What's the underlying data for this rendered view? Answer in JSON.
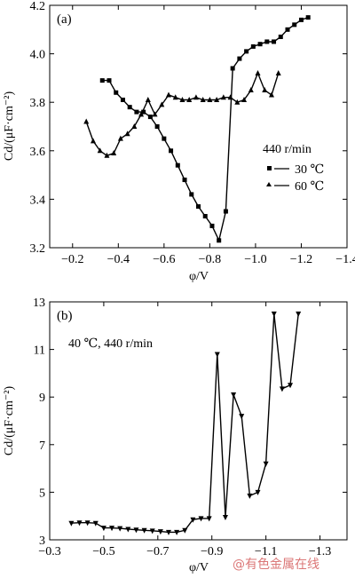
{
  "chart_data": [
    {
      "type": "line",
      "panel_label": "(a)",
      "xlabel": "φ/V",
      "ylabel": "Cd/(μF·cm⁻²)",
      "xlim": [
        -0.1,
        -1.4
      ],
      "ylim": [
        3.2,
        4.2
      ],
      "xticks": [
        -0.2,
        -0.4,
        -0.6,
        -0.8,
        -1.0,
        -1.2,
        -1.4
      ],
      "xtick_labels": [
        "−0.2",
        "−0.4",
        "−0.6",
        "−0.8",
        "−1.0",
        "−1.2",
        "−1.4"
      ],
      "yticks": [
        3.2,
        3.4,
        3.6,
        3.8,
        4.0,
        4.2
      ],
      "ytick_labels": [
        "3.2",
        "3.4",
        "3.6",
        "3.8",
        "4.0",
        "4.2"
      ],
      "legend_title": "440 r/min",
      "legend_position": "right",
      "series": [
        {
          "name": "30 ℃",
          "marker": "square",
          "x": [
            -0.33,
            -0.36,
            -0.39,
            -0.42,
            -0.45,
            -0.48,
            -0.51,
            -0.54,
            -0.57,
            -0.6,
            -0.63,
            -0.66,
            -0.69,
            -0.72,
            -0.75,
            -0.78,
            -0.81,
            -0.84,
            -0.87,
            -0.9,
            -0.93,
            -0.96,
            -0.99,
            -1.02,
            -1.05,
            -1.08,
            -1.11,
            -1.14,
            -1.17,
            -1.2,
            -1.23
          ],
          "y": [
            3.89,
            3.89,
            3.84,
            3.81,
            3.78,
            3.76,
            3.76,
            3.74,
            3.7,
            3.65,
            3.6,
            3.54,
            3.48,
            3.42,
            3.37,
            3.33,
            3.29,
            3.23,
            3.35,
            3.94,
            3.98,
            4.01,
            4.03,
            4.04,
            4.05,
            4.05,
            4.07,
            4.1,
            4.12,
            4.14,
            4.15
          ]
        },
        {
          "name": "60 ℃",
          "marker": "triangle",
          "x": [
            -0.26,
            -0.29,
            -0.32,
            -0.35,
            -0.38,
            -0.41,
            -0.44,
            -0.47,
            -0.5,
            -0.53,
            -0.56,
            -0.59,
            -0.62,
            -0.65,
            -0.68,
            -0.71,
            -0.74,
            -0.77,
            -0.8,
            -0.83,
            -0.86,
            -0.89,
            -0.92,
            -0.95,
            -0.98,
            -1.01,
            -1.04,
            -1.07,
            -1.1
          ],
          "y": [
            3.72,
            3.64,
            3.6,
            3.58,
            3.59,
            3.65,
            3.67,
            3.7,
            3.75,
            3.81,
            3.75,
            3.79,
            3.83,
            3.82,
            3.81,
            3.81,
            3.82,
            3.81,
            3.81,
            3.81,
            3.82,
            3.82,
            3.8,
            3.81,
            3.85,
            3.92,
            3.85,
            3.83,
            3.92
          ]
        }
      ]
    },
    {
      "type": "line",
      "panel_label": "(b)",
      "annotation": "40 ℃, 440 r/min",
      "xlabel": "φ/V",
      "ylabel": "Cd/(μF·cm⁻²)",
      "xlim": [
        -0.3,
        -1.4
      ],
      "ylim": [
        3,
        13
      ],
      "xticks": [
        -0.3,
        -0.5,
        -0.7,
        -0.9,
        -1.1,
        -1.3
      ],
      "xtick_labels": [
        "−0.3",
        "−0.5",
        "−0.7",
        "−0.9",
        "−1.1",
        "−1.3"
      ],
      "yticks": [
        3,
        5,
        7,
        9,
        11,
        13
      ],
      "ytick_labels": [
        "3",
        "5",
        "7",
        "9",
        "11",
        "13"
      ],
      "series": [
        {
          "name": "",
          "marker": "triangle-down",
          "x": [
            -0.38,
            -0.41,
            -0.44,
            -0.47,
            -0.5,
            -0.53,
            -0.56,
            -0.59,
            -0.62,
            -0.65,
            -0.68,
            -0.71,
            -0.74,
            -0.77,
            -0.8,
            -0.83,
            -0.86,
            -0.89,
            -0.92,
            -0.95,
            -0.98,
            -1.01,
            -1.04,
            -1.07,
            -1.1,
            -1.13,
            -1.16,
            -1.19,
            -1.22
          ],
          "y": [
            3.7,
            3.72,
            3.72,
            3.7,
            3.5,
            3.5,
            3.48,
            3.45,
            3.42,
            3.4,
            3.38,
            3.35,
            3.32,
            3.32,
            3.4,
            3.85,
            3.9,
            3.9,
            10.8,
            3.95,
            9.1,
            8.2,
            4.85,
            5.0,
            6.2,
            12.5,
            9.35,
            9.5,
            12.5
          ]
        }
      ]
    }
  ],
  "watermark": "@有色金属在线"
}
